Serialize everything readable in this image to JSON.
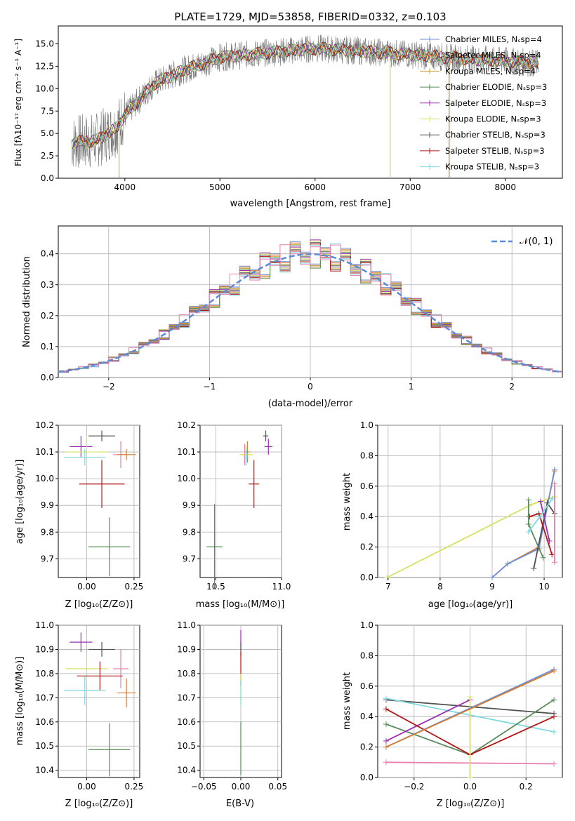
{
  "chart_data": [
    {
      "type": "line",
      "title": "PLATE=1729, MJD=53858, FIBERID=0332, z=0.103",
      "xlabel": "wavelength [Angstrom, rest frame]",
      "ylabel": "Flux [fλ10⁻¹⁷ erg cm⁻² s⁻¹ A⁻¹]",
      "xlim": [
        3300,
        8600
      ],
      "ylim": [
        0,
        17
      ],
      "xticks": [
        "4000",
        "5000",
        "6000",
        "7000",
        "8000"
      ],
      "yticks": [
        "0.0",
        "2.5",
        "5.0",
        "7.5",
        "10.0",
        "12.5",
        "15.0"
      ],
      "continuum": [
        [
          3450,
          4.0
        ],
        [
          3700,
          4.2
        ],
        [
          3900,
          5.5
        ],
        [
          4000,
          7.0
        ],
        [
          4300,
          10.5
        ],
        [
          4600,
          12.0
        ],
        [
          5000,
          13.5
        ],
        [
          5500,
          14.0
        ],
        [
          6000,
          14.5
        ],
        [
          6500,
          14.2
        ],
        [
          7000,
          13.8
        ],
        [
          7500,
          13.4
        ],
        [
          8000,
          13.1
        ],
        [
          8350,
          12.8
        ]
      ],
      "series": [
        {
          "name": "Chabrier MILES, N_SSP=4",
          "color": "#6b8fd6"
        },
        {
          "name": "Salpeter MILES, N_SSP=4",
          "color": "#d97b2f"
        },
        {
          "name": "Kroupa MILES, N_SSP=4",
          "color": "#c9a03a"
        },
        {
          "name": "Chabrier ELODIE, N_SSP=3",
          "color": "#5a8a5a"
        },
        {
          "name": "Salpeter ELODIE, N_SSP=3",
          "color": "#9b30b0"
        },
        {
          "name": "Kroupa ELODIE, N_SSP=3",
          "color": "#d8e060"
        },
        {
          "name": "Chabrier STELIB, N_SSP=3",
          "color": "#505050"
        },
        {
          "name": "Salpeter STELIB, N_SSP=3",
          "color": "#b01818"
        },
        {
          "name": "Kroupa STELIB, N_SSP=3",
          "color": "#80d8e0"
        }
      ]
    },
    {
      "type": "histogram",
      "xlabel": "(data-model)/error",
      "ylabel": "Normed distribution",
      "xlim": [
        -2.5,
        2.5
      ],
      "ylim": [
        0,
        0.49
      ],
      "xticks": [
        "−2",
        "−1",
        "0",
        "1",
        "2"
      ],
      "yticks": [
        "0.0",
        "0.1",
        "0.2",
        "0.3",
        "0.4"
      ],
      "grid": true,
      "legend": "𝒩(0, 1)",
      "normal_curve": {
        "mean": 0,
        "sigma": 1,
        "color": "#5b8ad6"
      }
    },
    {
      "type": "scatter",
      "xlabel": "Z [log₁₀(Z/Z⊙)]",
      "ylabel": "age  [log₁₀(age/yr)]",
      "xlim": [
        -0.15,
        0.28
      ],
      "ylim": [
        9.63,
        10.2
      ],
      "xticks": [
        "0.00",
        "0.25"
      ],
      "yticks": [
        "9.7",
        "9.8",
        "9.9",
        "10.0",
        "10.1",
        "10.2"
      ],
      "points": [
        {
          "x": -0.03,
          "y": 10.12,
          "ex": 0.06,
          "ey": 0.04,
          "c": "#9b30b0"
        },
        {
          "x": 0.08,
          "y": 10.16,
          "ex": 0.07,
          "ey": 0.02,
          "c": "#505050"
        },
        {
          "x": 0.18,
          "y": 10.09,
          "ex": 0.04,
          "ey": 0.05,
          "c": "#e87fb0"
        },
        {
          "x": 0.21,
          "y": 10.09,
          "ex": 0.05,
          "ey": 0.02,
          "c": "#d97b2f"
        },
        {
          "x": 0.0,
          "y": 10.1,
          "ex": 0.11,
          "ey": 0.06,
          "c": "#d8e060"
        },
        {
          "x": -0.01,
          "y": 10.08,
          "ex": 0.11,
          "ey": 0.03,
          "c": "#80d8e0"
        },
        {
          "x": 0.08,
          "y": 9.98,
          "ex": 0.12,
          "ey": 0.09,
          "c": "#b01818"
        },
        {
          "x": 0.12,
          "y": 9.745,
          "ex": 0.11,
          "ey": 0.11,
          "c": "#5a8a5a"
        }
      ]
    },
    {
      "type": "scatter",
      "xlabel": "mass [log₁₀(M/M⊙)]",
      "xlim": [
        10.38,
        11.0
      ],
      "ylim": [
        9.63,
        10.2
      ],
      "xticks": [
        "10.5",
        "11.0"
      ],
      "yticks": [
        "9.7",
        "9.8",
        "9.9",
        "10.0",
        "10.1",
        "10.2"
      ],
      "points": [
        {
          "x": 10.88,
          "y": 10.16,
          "ex": 0.02,
          "ey": 0.02,
          "c": "#505050"
        },
        {
          "x": 10.9,
          "y": 10.12,
          "ex": 0.03,
          "ey": 0.03,
          "c": "#9b30b0"
        },
        {
          "x": 10.74,
          "y": 10.1,
          "ex": 0.02,
          "ey": 0.04,
          "c": "#d97b2f"
        },
        {
          "x": 10.72,
          "y": 10.09,
          "ex": 0.03,
          "ey": 0.04,
          "c": "#e87fb0"
        },
        {
          "x": 10.73,
          "y": 10.09,
          "ex": 0.05,
          "ey": 0.03,
          "c": "#d8e060"
        },
        {
          "x": 10.73,
          "y": 10.08,
          "ex": 0.02,
          "ey": 0.03,
          "c": "#80d8e0"
        },
        {
          "x": 10.79,
          "y": 9.98,
          "ex": 0.04,
          "ey": 0.09,
          "c": "#b01818"
        },
        {
          "x": 10.49,
          "y": 9.745,
          "ex": 0.06,
          "ey": 0.16,
          "c": "#5a8a5a"
        }
      ]
    },
    {
      "type": "line",
      "xlabel": "age  [log₁₀(age/yr)]",
      "ylabel": "mass weight",
      "xlim": [
        6.8,
        10.35
      ],
      "ylim": [
        0,
        1
      ],
      "xticks": [
        "7",
        "8",
        "9",
        "10"
      ],
      "yticks": [
        "0.0",
        "0.2",
        "0.4",
        "0.6",
        "0.8",
        "1.0"
      ],
      "grid": true,
      "series": [
        {
          "c": "#d8e060",
          "pts": [
            [
              6.98,
              0.0
            ],
            [
              9.76,
              0.48
            ],
            [
              10.2,
              0.53
            ]
          ]
        },
        {
          "c": "#d97b2f",
          "pts": [
            [
              9.0,
              0.0
            ],
            [
              9.3,
              0.09
            ],
            [
              9.9,
              0.2
            ],
            [
              10.2,
              0.7
            ]
          ]
        },
        {
          "c": "#6b8fd6",
          "pts": [
            [
              9.0,
              0.0
            ],
            [
              9.3,
              0.09
            ],
            [
              9.9,
              0.19
            ],
            [
              10.2,
              0.71
            ]
          ]
        },
        {
          "c": "#505050",
          "pts": [
            [
              9.8,
              0.06
            ],
            [
              10.06,
              0.49
            ],
            [
              10.2,
              0.42
            ]
          ]
        },
        {
          "c": "#b01818",
          "pts": [
            [
              9.72,
              0.4
            ],
            [
              9.9,
              0.42
            ],
            [
              10.15,
              0.15
            ]
          ]
        },
        {
          "c": "#9b30b0",
          "pts": [
            [
              9.93,
              0.5
            ],
            [
              10.1,
              0.24
            ]
          ]
        },
        {
          "c": "#5a8a5a",
          "pts": [
            [
              9.7,
              0.51
            ],
            [
              9.7,
              0.35
            ],
            [
              9.98,
              0.13
            ]
          ]
        },
        {
          "c": "#80d8e0",
          "pts": [
            [
              9.7,
              0.3
            ],
            [
              9.92,
              0.4
            ],
            [
              10.16,
              0.52
            ]
          ]
        },
        {
          "c": "#e87fb0",
          "pts": [
            [
              10.2,
              0.62
            ],
            [
              10.2,
              0.1
            ]
          ]
        }
      ]
    },
    {
      "type": "scatter",
      "xlabel": "Z [log₁₀(Z/Z⊙)]",
      "ylabel": "mass [log₁₀(M/M⊙)]",
      "xlim": [
        -0.15,
        0.28
      ],
      "ylim": [
        10.37,
        11.0
      ],
      "xticks": [
        "0.00",
        "0.25"
      ],
      "yticks": [
        "10.4",
        "10.5",
        "10.6",
        "10.7",
        "10.8",
        "10.9",
        "11.0"
      ],
      "points": [
        {
          "x": -0.03,
          "y": 10.93,
          "ex": 0.06,
          "ey": 0.04,
          "c": "#9b30b0"
        },
        {
          "x": 0.08,
          "y": 10.9,
          "ex": 0.07,
          "ey": 0.03,
          "c": "#505050"
        },
        {
          "x": 0.18,
          "y": 10.82,
          "ex": 0.04,
          "ey": 0.08,
          "c": "#e87fb0"
        },
        {
          "x": 0.0,
          "y": 10.82,
          "ex": 0.11,
          "ey": 0.06,
          "c": "#d8e060"
        },
        {
          "x": 0.07,
          "y": 10.79,
          "ex": 0.12,
          "ey": 0.06,
          "c": "#b01818"
        },
        {
          "x": 0.21,
          "y": 10.72,
          "ex": 0.05,
          "ey": 0.06,
          "c": "#d97b2f"
        },
        {
          "x": -0.01,
          "y": 10.73,
          "ex": 0.11,
          "ey": 0.06,
          "c": "#80d8e0"
        },
        {
          "x": 0.12,
          "y": 10.485,
          "ex": 0.11,
          "ey": 0.11,
          "c": "#5a8a5a"
        }
      ]
    },
    {
      "type": "scatter",
      "xlabel": "E(B-V)",
      "xlim": [
        -0.055,
        0.055
      ],
      "ylim": [
        10.37,
        11.0
      ],
      "xticks": [
        "−0.05",
        "0.00",
        "0.05"
      ],
      "yticks": [
        "10.4",
        "10.5",
        "10.6",
        "10.7",
        "10.8",
        "10.9",
        "11.0"
      ],
      "points": [
        {
          "x": 0.0,
          "y": 10.94,
          "ex": 0,
          "ey": 0.04,
          "c": "#9b30b0"
        },
        {
          "x": 0.0,
          "y": 10.9,
          "ex": 0,
          "ey": 0.03,
          "c": "#505050"
        },
        {
          "x": 0.0,
          "y": 10.82,
          "ex": 0,
          "ey": 0.07,
          "c": "#b01818"
        },
        {
          "x": 0.0,
          "y": 10.74,
          "ex": 0,
          "ey": 0.06,
          "c": "#d8e060"
        },
        {
          "x": 0.0,
          "y": 10.72,
          "ex": 0,
          "ey": 0.05,
          "c": "#80d8e0"
        },
        {
          "x": 0.0,
          "y": 10.49,
          "ex": 0,
          "ey": 0.11,
          "c": "#5a8a5a"
        }
      ]
    },
    {
      "type": "line",
      "xlabel": "Z [log₁₀(Z/Z⊙)]",
      "ylabel": "mass weight",
      "xlim": [
        -0.33,
        0.33
      ],
      "ylim": [
        0,
        1
      ],
      "xticks": [
        "−0.2",
        "0.0",
        "0.2"
      ],
      "yticks": [
        "0.0",
        "0.2",
        "0.4",
        "0.6",
        "0.8",
        "1.0"
      ],
      "grid": true,
      "series": [
        {
          "c": "#505050",
          "pts": [
            [
              -0.3,
              0.51
            ],
            [
              0.3,
              0.42
            ]
          ]
        },
        {
          "c": "#80d8e0",
          "pts": [
            [
              -0.3,
              0.52
            ],
            [
              0.3,
              0.3
            ]
          ]
        },
        {
          "c": "#e87fb0",
          "pts": [
            [
              -0.3,
              0.1
            ],
            [
              0.3,
              0.09
            ]
          ]
        },
        {
          "c": "#5a8a5a",
          "pts": [
            [
              -0.3,
              0.35
            ],
            [
              0.0,
              0.15
            ],
            [
              0.3,
              0.51
            ]
          ]
        },
        {
          "c": "#9b30b0",
          "pts": [
            [
              -0.3,
              0.24
            ],
            [
              0.0,
              0.51
            ]
          ]
        },
        {
          "c": "#b01818",
          "pts": [
            [
              -0.3,
              0.45
            ],
            [
              0.0,
              0.15
            ],
            [
              0.3,
              0.4
            ]
          ]
        },
        {
          "c": "#d8e060",
          "pts": [
            [
              0.0,
              0.53
            ],
            [
              0.0,
              0.0
            ]
          ]
        },
        {
          "c": "#6b8fd6",
          "pts": [
            [
              -0.3,
              0.2
            ],
            [
              0.3,
              0.71
            ]
          ]
        },
        {
          "c": "#d97b2f",
          "pts": [
            [
              -0.3,
              0.2
            ],
            [
              0.3,
              0.7
            ]
          ]
        }
      ]
    }
  ]
}
